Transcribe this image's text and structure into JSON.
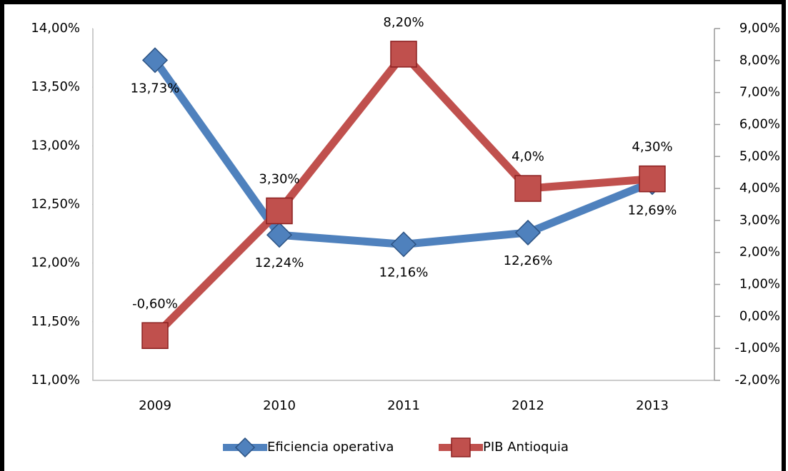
{
  "chart_data": {
    "type": "line",
    "categories": [
      "2009",
      "2010",
      "2011",
      "2012",
      "2013"
    ],
    "series": [
      {
        "name": "Eficiencia operativa",
        "color": "#4f81bd",
        "marker": "diamond",
        "values": [
          13.73,
          12.24,
          12.16,
          12.26,
          12.69
        ],
        "value_labels": [
          "13,73%",
          "12,24%",
          "12,16%",
          "12,26%",
          "12,69%"
        ]
      },
      {
        "name": "PIB Antioquia",
        "color": "#c0504d",
        "marker": "square",
        "axis": "y2",
        "values": [
          -0.6,
          3.3,
          8.2,
          4.0,
          4.3
        ],
        "value_labels": [
          "-0,60%",
          "3,30%",
          "8,20%",
          "4,0%",
          "4,30%"
        ]
      }
    ],
    "ylim": [
      11,
      14
    ],
    "yticks": [
      {
        "value": 11,
        "label": "11,00%"
      },
      {
        "value": 11.5,
        "label": "11,50%"
      },
      {
        "value": 12,
        "label": "12,00%"
      },
      {
        "value": 12.5,
        "label": "12,50%"
      },
      {
        "value": 13,
        "label": "13,00%"
      },
      {
        "value": 13.5,
        "label": "13,50%"
      },
      {
        "value": 14,
        "label": "14,00%"
      }
    ],
    "y2lim": [
      -2,
      9
    ],
    "y2ticks": [
      {
        "value": -2,
        "label": "-2,00%"
      },
      {
        "value": -1,
        "label": "-1,00%"
      },
      {
        "value": 0,
        "label": "0,00%"
      },
      {
        "value": 1,
        "label": "1,00%"
      },
      {
        "value": 2,
        "label": "2,00%"
      },
      {
        "value": 3,
        "label": "3,00%"
      },
      {
        "value": 4,
        "label": "4,00%"
      },
      {
        "value": 5,
        "label": "5,00%"
      },
      {
        "value": 6,
        "label": "6,00%"
      },
      {
        "value": 7,
        "label": "7,00%"
      },
      {
        "value": 8,
        "label": "8,00%"
      },
      {
        "value": 9,
        "label": "9,00%"
      }
    ],
    "legend": "bottom"
  }
}
